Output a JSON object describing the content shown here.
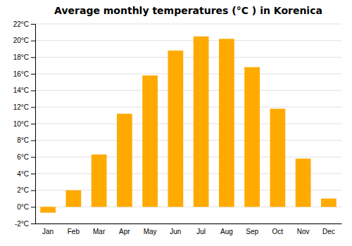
{
  "chart_data": {
    "type": "bar",
    "title": "Average monthly temperatures (°C ) in Korenica",
    "categories": [
      "Jan",
      "Feb",
      "Mar",
      "Apr",
      "May",
      "Jun",
      "Jul",
      "Aug",
      "Sep",
      "Oct",
      "Nov",
      "Dec"
    ],
    "values": [
      -0.7,
      2.0,
      6.3,
      11.2,
      15.8,
      18.8,
      20.5,
      20.2,
      16.8,
      11.8,
      5.8,
      1.0
    ],
    "color": "#FFAA00",
    "ylim": [
      -2,
      22
    ],
    "yticks": [
      {
        "value": -2,
        "label": "-2°C"
      },
      {
        "value": 0,
        "label": "0°C"
      },
      {
        "value": 2,
        "label": "2°C"
      },
      {
        "value": 4,
        "label": "4°C"
      },
      {
        "value": 6,
        "label": "6°C"
      },
      {
        "value": 8,
        "label": "8°C"
      },
      {
        "value": 10,
        "label": "10°C"
      },
      {
        "value": 12,
        "label": "12°C"
      },
      {
        "value": 14,
        "label": "14°C"
      },
      {
        "value": 16,
        "label": "16°C"
      },
      {
        "value": 18,
        "label": "18°C"
      },
      {
        "value": 20,
        "label": "20°C"
      },
      {
        "value": 22,
        "label": "22°C"
      }
    ],
    "grid": true
  }
}
